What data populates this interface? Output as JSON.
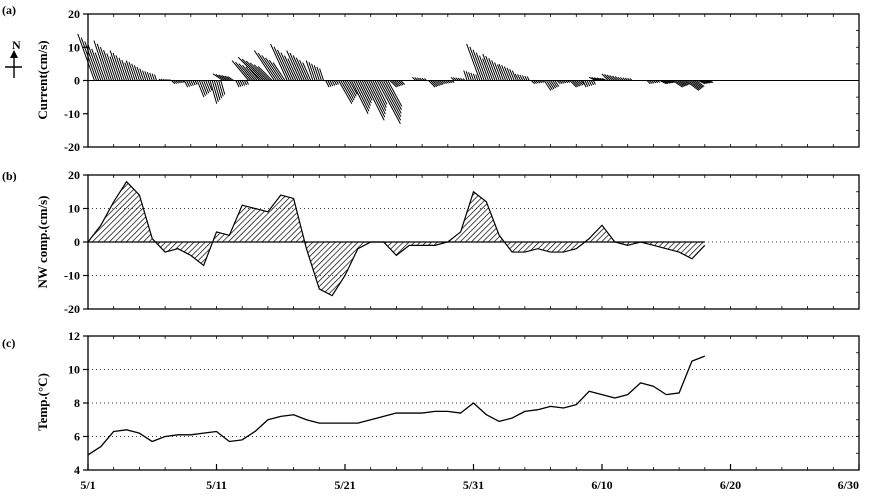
{
  "chart_data": [
    {
      "panel_label": "(a)",
      "type": "stick_vector",
      "ylabel": "Current(cm/s)",
      "north_indicator": "N",
      "ylim": [
        -20,
        20
      ],
      "yticks": [
        20,
        10,
        0,
        -10,
        -20
      ],
      "x_start": "5/1",
      "x_end": "6/30",
      "vectors_day_east_north": [
        [
          0.5,
          -5,
          14
        ],
        [
          1.5,
          -4,
          12
        ],
        [
          2.5,
          -3,
          9
        ],
        [
          3.5,
          -2,
          6
        ],
        [
          4.5,
          -1,
          3
        ],
        [
          5.5,
          0.5,
          0.5
        ],
        [
          6.5,
          1,
          -1
        ],
        [
          7.5,
          1,
          -2
        ],
        [
          8.5,
          2,
          -5
        ],
        [
          9.5,
          2,
          -7
        ],
        [
          10.5,
          -3,
          2
        ],
        [
          11.5,
          1,
          -2
        ],
        [
          12.5,
          -5,
          6
        ],
        [
          13.5,
          -7,
          7
        ],
        [
          14.5,
          -6,
          9
        ],
        [
          15.5,
          -5,
          11
        ],
        [
          16.5,
          -4,
          9
        ],
        [
          17.5,
          -2,
          6
        ],
        [
          18.5,
          1,
          -2
        ],
        [
          19.5,
          4,
          -7
        ],
        [
          20.5,
          5,
          -10
        ],
        [
          21.5,
          6,
          -12
        ],
        [
          22.5,
          7,
          -13
        ],
        [
          23.5,
          2,
          -2
        ],
        [
          24.5,
          1,
          0
        ],
        [
          25.5,
          -1,
          1
        ],
        [
          26.5,
          2,
          -2
        ],
        [
          27.5,
          1,
          -1
        ],
        [
          28.5,
          -1,
          1
        ],
        [
          29.5,
          -1,
          3
        ],
        [
          30.5,
          -4,
          11
        ],
        [
          31.5,
          -3,
          8
        ],
        [
          32.5,
          -2,
          5
        ],
        [
          33.5,
          -1,
          2
        ],
        [
          34.5,
          1,
          -1
        ],
        [
          35.5,
          2,
          -3
        ],
        [
          36.5,
          1,
          -1
        ],
        [
          37.5,
          2,
          -2
        ],
        [
          38.5,
          1,
          -2
        ],
        [
          39.5,
          -2,
          1
        ],
        [
          40.5,
          -2,
          2
        ],
        [
          41.5,
          -1,
          1
        ],
        [
          42.5,
          1,
          0
        ],
        [
          43.5,
          1,
          -1
        ],
        [
          44.5,
          2,
          -1
        ],
        [
          45.5,
          3,
          -2
        ],
        [
          46.5,
          4,
          -3
        ],
        [
          47.5,
          2,
          -1
        ]
      ],
      "x_ticks_shown": false
    },
    {
      "panel_label": "(b)",
      "type": "area",
      "ylabel": "NW comp.(cm/s)",
      "ylim": [
        -20,
        20
      ],
      "yticks": [
        20,
        10,
        0,
        -10,
        -20
      ],
      "x_start": "5/1",
      "x_end": "6/30",
      "x_days": [
        0,
        1,
        2,
        3,
        4,
        5,
        6,
        7,
        8,
        9,
        10,
        11,
        12,
        13,
        14,
        15,
        16,
        17,
        18,
        19,
        20,
        21,
        22,
        23,
        24,
        25,
        26,
        27,
        28,
        29,
        30,
        31,
        32,
        33,
        34,
        35,
        36,
        37,
        38,
        39,
        40,
        41,
        42,
        43,
        44,
        45,
        46,
        47,
        48
      ],
      "values": [
        0,
        5,
        12,
        18,
        14,
        1,
        -3,
        -2,
        -4,
        -7,
        3,
        2,
        11,
        10,
        9,
        14,
        13,
        -2,
        -14,
        -16,
        -10,
        -2,
        0,
        0,
        -4,
        -1,
        -1,
        -1,
        0,
        3,
        15,
        12,
        2,
        -3,
        -3,
        -2,
        -3,
        -3,
        -2,
        1,
        5,
        0,
        -1,
        0,
        -1,
        -2,
        -3,
        -5,
        -1
      ],
      "grid": "dotted horizontal"
    },
    {
      "panel_label": "(c)",
      "type": "line",
      "ylabel": "Temp.(°C)",
      "ylim": [
        4,
        12
      ],
      "yticks": [
        12,
        10,
        8,
        6,
        4
      ],
      "xtick_labels": [
        "5/1",
        "5/11",
        "5/21",
        "5/31",
        "6/10",
        "6/20",
        "6/30"
      ],
      "xtick_days": [
        0,
        10,
        20,
        30,
        40,
        50,
        60
      ],
      "x_days": [
        0,
        1,
        2,
        3,
        4,
        5,
        6,
        7,
        8,
        9,
        10,
        11,
        12,
        13,
        14,
        15,
        16,
        17,
        18,
        19,
        20,
        21,
        22,
        23,
        24,
        25,
        26,
        27,
        28,
        29,
        30,
        31,
        32,
        33,
        34,
        35,
        36,
        37,
        38,
        39,
        40,
        41,
        42,
        43,
        44,
        45,
        46,
        47,
        48
      ],
      "values": [
        4.9,
        5.4,
        6.3,
        6.4,
        6.2,
        5.7,
        6.0,
        6.1,
        6.1,
        6.2,
        6.3,
        5.7,
        5.8,
        6.3,
        7.0,
        7.2,
        7.3,
        7.0,
        6.8,
        6.8,
        6.8,
        6.8,
        7.0,
        7.2,
        7.4,
        7.4,
        7.4,
        7.5,
        7.5,
        7.4,
        8.0,
        7.3,
        6.9,
        7.1,
        7.5,
        7.6,
        7.8,
        7.7,
        7.9,
        8.7,
        8.5,
        8.3,
        8.5,
        9.2,
        9.0,
        8.5,
        8.6,
        10.5,
        10.8
      ],
      "grid": "dotted horizontal"
    }
  ]
}
